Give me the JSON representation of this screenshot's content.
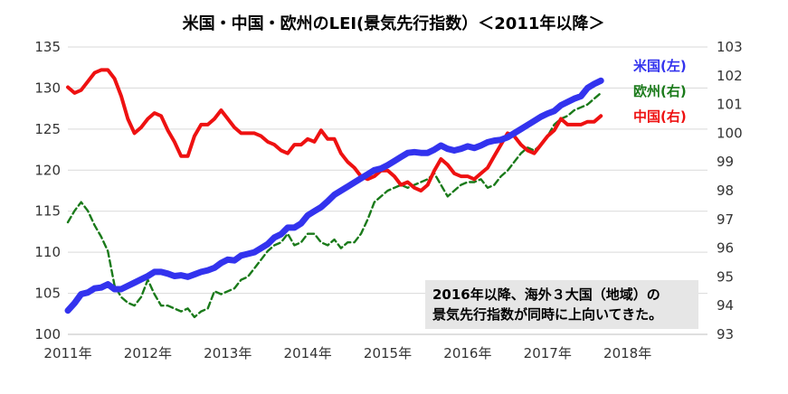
{
  "chart_data": {
    "type": "line",
    "title": "米国・中国・欧州のLEI(景気先行指数）＜2011年以降＞",
    "x_start_year": 2011,
    "x_tick_labels": [
      "2011年",
      "2012年",
      "2013年",
      "2014年",
      "2015年",
      "2016年",
      "2017年",
      "2018年"
    ],
    "left_axis": {
      "ylim": [
        100,
        135
      ],
      "ticks": [
        "100",
        "105",
        "110",
        "115",
        "120",
        "125",
        "130",
        "135"
      ]
    },
    "right_axis": {
      "ylim": [
        93,
        103
      ],
      "ticks": [
        "93",
        "94",
        "95",
        "96",
        "97",
        "98",
        "99",
        "100",
        "101",
        "102",
        "103"
      ]
    },
    "grid": "horizontal",
    "legend_position": "top-right",
    "series": [
      {
        "name": "米国(左)",
        "axis": "left",
        "color": "#3333ee",
        "style": "solid",
        "values": [
          102.9,
          103.8,
          104.9,
          105.1,
          105.6,
          105.7,
          106.1,
          105.5,
          105.5,
          105.9,
          106.3,
          106.7,
          107.1,
          107.6,
          107.6,
          107.4,
          107.1,
          107.2,
          107.0,
          107.3,
          107.6,
          107.8,
          108.1,
          108.7,
          109.1,
          109.0,
          109.6,
          109.8,
          110.0,
          110.5,
          111.0,
          111.8,
          112.2,
          113.0,
          113.0,
          113.5,
          114.5,
          115.0,
          115.5,
          116.2,
          117.0,
          117.5,
          118.0,
          118.5,
          119.0,
          119.5,
          120.0,
          120.2,
          120.6,
          121.1,
          121.6,
          122.1,
          122.2,
          122.1,
          122.1,
          122.5,
          123.0,
          122.6,
          122.4,
          122.6,
          122.9,
          122.7,
          123.0,
          123.4,
          123.6,
          123.7,
          124.0,
          124.5,
          125.0,
          125.5,
          126.0,
          126.5,
          126.9,
          127.2,
          127.9,
          128.3,
          128.7,
          129.0,
          130.0,
          130.5,
          130.9
        ]
      },
      {
        "name": "欧州(右)",
        "axis": "right",
        "color": "#1a7a1a",
        "style": "dashed",
        "values": [
          96.9,
          97.3,
          97.6,
          97.3,
          96.8,
          96.4,
          95.9,
          94.7,
          94.3,
          94.1,
          94.0,
          94.3,
          94.9,
          94.4,
          94.0,
          94.0,
          93.9,
          93.8,
          93.9,
          93.6,
          93.8,
          93.9,
          94.5,
          94.4,
          94.5,
          94.6,
          94.9,
          95.0,
          95.3,
          95.6,
          95.9,
          96.1,
          96.2,
          96.5,
          96.1,
          96.2,
          96.5,
          96.5,
          96.2,
          96.1,
          96.3,
          96.0,
          96.2,
          96.2,
          96.5,
          97.0,
          97.6,
          97.8,
          98.0,
          98.1,
          98.2,
          98.1,
          98.2,
          98.3,
          98.4,
          98.6,
          98.2,
          97.8,
          98.0,
          98.2,
          98.3,
          98.3,
          98.4,
          98.1,
          98.2,
          98.5,
          98.7,
          99.0,
          99.3,
          99.5,
          99.4,
          99.6,
          99.9,
          100.3,
          100.5,
          100.6,
          100.8,
          100.9,
          101.0,
          101.2,
          101.4
        ]
      },
      {
        "name": "中国(右)",
        "axis": "right",
        "color": "#ee1111",
        "style": "solid",
        "values": [
          101.6,
          101.4,
          101.5,
          101.8,
          102.1,
          102.2,
          102.2,
          101.9,
          101.3,
          100.5,
          100.0,
          100.2,
          100.5,
          100.7,
          100.6,
          100.1,
          99.7,
          99.2,
          99.2,
          99.9,
          100.3,
          100.3,
          100.5,
          100.8,
          100.5,
          100.2,
          100.0,
          100.0,
          100.0,
          99.9,
          99.7,
          99.6,
          99.4,
          99.3,
          99.6,
          99.6,
          99.8,
          99.7,
          100.1,
          99.8,
          99.8,
          99.3,
          99.0,
          98.8,
          98.5,
          98.4,
          98.5,
          98.7,
          98.7,
          98.5,
          98.2,
          98.3,
          98.1,
          98.0,
          98.2,
          98.7,
          99.1,
          98.9,
          98.6,
          98.5,
          98.5,
          98.4,
          98.6,
          98.8,
          99.2,
          99.6,
          100.0,
          99.9,
          99.6,
          99.4,
          99.3,
          99.6,
          99.9,
          100.1,
          100.5,
          100.3,
          100.3,
          100.3,
          100.4,
          100.4,
          100.6
        ]
      }
    ],
    "annotation": [
      "2016年以降、海外３大国（地域）の",
      "景気先行指数が同時に上向いてきた。"
    ]
  }
}
